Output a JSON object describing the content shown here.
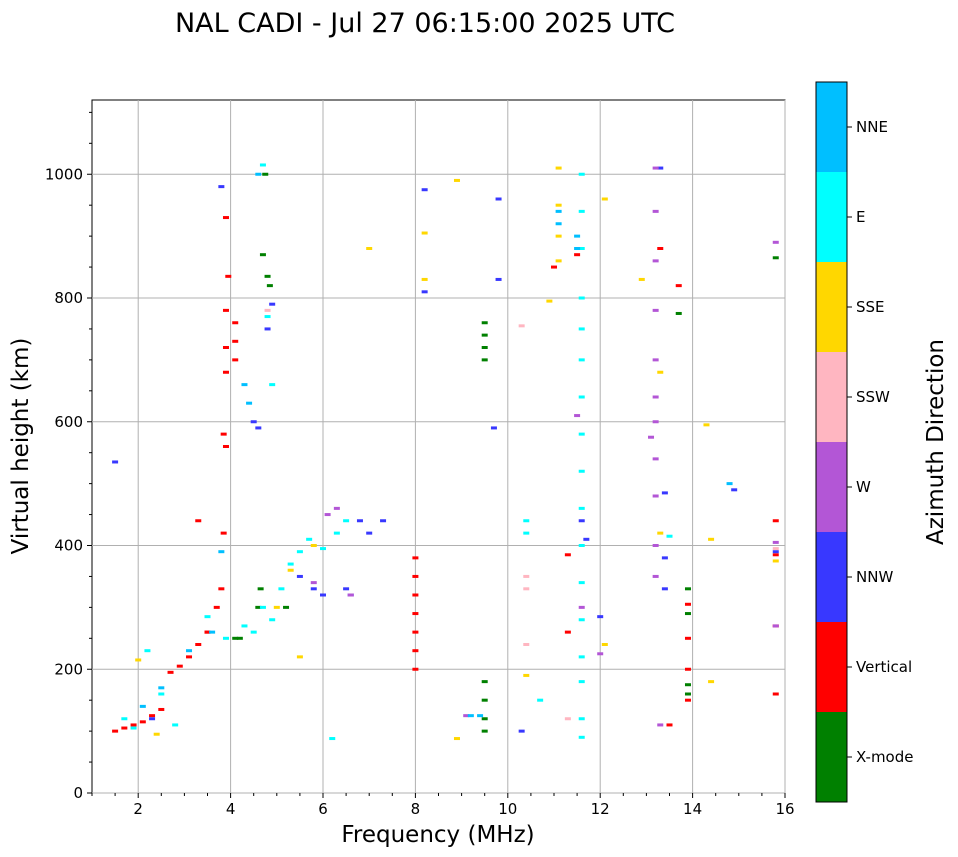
{
  "chart_data": {
    "type": "scatter",
    "title": "NAL CADI - Jul 27 06:15:00 2025 UTC",
    "xlabel": "Frequency (MHz)",
    "ylabel": "Virtual height (km)",
    "xlim": [
      1,
      16
    ],
    "ylim": [
      0,
      1120
    ],
    "x_ticks": [
      2,
      4,
      6,
      8,
      10,
      12,
      14,
      16
    ],
    "y_ticks": [
      0,
      200,
      400,
      600,
      800,
      1000
    ],
    "grid": true,
    "colorbar": {
      "label": "Azimuth Direction",
      "categories": [
        {
          "name": "X-mode",
          "color": "#008000"
        },
        {
          "name": "Vertical",
          "color": "#ff0000"
        },
        {
          "name": "NNW",
          "color": "#3838ff"
        },
        {
          "name": "W",
          "color": "#b356d6"
        },
        {
          "name": "SSW",
          "color": "#ffb6c1"
        },
        {
          "name": "SSE",
          "color": "#ffd700"
        },
        {
          "name": "E",
          "color": "#00ffff"
        },
        {
          "name": "NNE",
          "color": "#00bfff"
        }
      ]
    },
    "series": [
      {
        "name": "X-mode",
        "points": [
          [
            4.1,
            250
          ],
          [
            4.2,
            250
          ],
          [
            4.6,
            300
          ],
          [
            4.65,
            330
          ],
          [
            4.7,
            870
          ],
          [
            4.8,
            835
          ],
          [
            4.85,
            820
          ],
          [
            4.75,
            1000
          ],
          [
            9.5,
            700
          ],
          [
            9.5,
            720
          ],
          [
            9.5,
            740
          ],
          [
            9.5,
            760
          ],
          [
            9.5,
            120
          ],
          [
            9.5,
            100
          ],
          [
            9.5,
            150
          ],
          [
            9.5,
            180
          ],
          [
            13.7,
            775
          ],
          [
            13.9,
            330
          ],
          [
            13.9,
            290
          ],
          [
            13.9,
            175
          ],
          [
            13.9,
            160
          ],
          [
            15.8,
            865
          ],
          [
            5.2,
            300
          ]
        ]
      },
      {
        "name": "Vertical",
        "points": [
          [
            1.5,
            100
          ],
          [
            1.7,
            105
          ],
          [
            1.9,
            110
          ],
          [
            2.1,
            115
          ],
          [
            2.3,
            125
          ],
          [
            2.5,
            135
          ],
          [
            2.7,
            195
          ],
          [
            2.9,
            205
          ],
          [
            3.1,
            220
          ],
          [
            3.3,
            240
          ],
          [
            3.5,
            260
          ],
          [
            3.7,
            300
          ],
          [
            3.8,
            330
          ],
          [
            3.85,
            420
          ],
          [
            3.9,
            560
          ],
          [
            3.85,
            580
          ],
          [
            3.9,
            680
          ],
          [
            3.9,
            720
          ],
          [
            4.1,
            700
          ],
          [
            4.1,
            730
          ],
          [
            4.1,
            760
          ],
          [
            3.9,
            780
          ],
          [
            3.95,
            835
          ],
          [
            3.9,
            930
          ],
          [
            3.3,
            440
          ],
          [
            3.5,
            260
          ],
          [
            8.0,
            200
          ],
          [
            8.0,
            230
          ],
          [
            8.0,
            260
          ],
          [
            8.0,
            290
          ],
          [
            8.0,
            320
          ],
          [
            8.0,
            350
          ],
          [
            8.0,
            380
          ],
          [
            11.0,
            850
          ],
          [
            11.5,
            870
          ],
          [
            11.3,
            385
          ],
          [
            11.3,
            260
          ],
          [
            13.5,
            110
          ],
          [
            13.7,
            820
          ],
          [
            13.9,
            305
          ],
          [
            13.9,
            250
          ],
          [
            13.9,
            200
          ],
          [
            13.9,
            150
          ],
          [
            13.3,
            880
          ],
          [
            15.8,
            440
          ],
          [
            15.8,
            385
          ],
          [
            15.8,
            160
          ],
          [
            15.8,
            270
          ]
        ]
      },
      {
        "name": "NNW",
        "points": [
          [
            1.5,
            535
          ],
          [
            2.3,
            120
          ],
          [
            3.8,
            980
          ],
          [
            4.5,
            600
          ],
          [
            4.6,
            590
          ],
          [
            4.8,
            750
          ],
          [
            4.9,
            790
          ],
          [
            5.5,
            350
          ],
          [
            5.8,
            330
          ],
          [
            6.0,
            320
          ],
          [
            6.5,
            330
          ],
          [
            6.6,
            320
          ],
          [
            6.8,
            440
          ],
          [
            7.0,
            420
          ],
          [
            7.3,
            440
          ],
          [
            8.2,
            975
          ],
          [
            8.2,
            810
          ],
          [
            9.7,
            590
          ],
          [
            9.8,
            830
          ],
          [
            9.8,
            960
          ],
          [
            10.3,
            100
          ],
          [
            11.6,
            440
          ],
          [
            11.7,
            410
          ],
          [
            12.0,
            285
          ],
          [
            13.3,
            1010
          ],
          [
            13.4,
            485
          ],
          [
            13.4,
            330
          ],
          [
            13.4,
            380
          ],
          [
            14.9,
            490
          ],
          [
            15.8,
            390
          ]
        ]
      },
      {
        "name": "W",
        "points": [
          [
            5.8,
            340
          ],
          [
            6.1,
            450
          ],
          [
            6.3,
            460
          ],
          [
            6.6,
            320
          ],
          [
            9.1,
            125
          ],
          [
            11.5,
            610
          ],
          [
            11.6,
            300
          ],
          [
            12.0,
            225
          ],
          [
            13.2,
            1010
          ],
          [
            13.2,
            940
          ],
          [
            13.2,
            860
          ],
          [
            13.2,
            780
          ],
          [
            13.2,
            700
          ],
          [
            13.2,
            640
          ],
          [
            13.2,
            600
          ],
          [
            13.2,
            540
          ],
          [
            13.2,
            480
          ],
          [
            13.2,
            400
          ],
          [
            13.2,
            350
          ],
          [
            13.1,
            575
          ],
          [
            13.3,
            110
          ],
          [
            15.8,
            890
          ],
          [
            15.8,
            405
          ],
          [
            15.8,
            270
          ]
        ]
      },
      {
        "name": "SSW",
        "points": [
          [
            10.3,
            755
          ],
          [
            10.4,
            350
          ],
          [
            10.4,
            330
          ],
          [
            10.4,
            240
          ],
          [
            11.3,
            120
          ],
          [
            15.8,
            395
          ],
          [
            4.8,
            780
          ]
        ]
      },
      {
        "name": "SSE",
        "points": [
          [
            2.0,
            215
          ],
          [
            2.4,
            95
          ],
          [
            5.0,
            300
          ],
          [
            5.3,
            360
          ],
          [
            5.5,
            220
          ],
          [
            5.8,
            400
          ],
          [
            7.0,
            880
          ],
          [
            8.2,
            905
          ],
          [
            8.2,
            830
          ],
          [
            8.9,
            990
          ],
          [
            8.9,
            88
          ],
          [
            10.4,
            190
          ],
          [
            10.9,
            795
          ],
          [
            11.1,
            1010
          ],
          [
            11.1,
            950
          ],
          [
            11.1,
            900
          ],
          [
            11.1,
            860
          ],
          [
            12.1,
            960
          ],
          [
            12.1,
            240
          ],
          [
            12.9,
            830
          ],
          [
            13.3,
            680
          ],
          [
            13.3,
            420
          ],
          [
            14.3,
            595
          ],
          [
            14.4,
            410
          ],
          [
            14.4,
            180
          ],
          [
            15.8,
            375
          ]
        ]
      },
      {
        "name": "E",
        "points": [
          [
            1.7,
            120
          ],
          [
            1.9,
            105
          ],
          [
            2.2,
            230
          ],
          [
            2.5,
            160
          ],
          [
            2.8,
            110
          ],
          [
            3.5,
            285
          ],
          [
            3.9,
            250
          ],
          [
            4.3,
            270
          ],
          [
            4.5,
            260
          ],
          [
            4.7,
            300
          ],
          [
            4.9,
            280
          ],
          [
            5.1,
            330
          ],
          [
            5.3,
            370
          ],
          [
            5.5,
            390
          ],
          [
            5.7,
            410
          ],
          [
            6.0,
            395
          ],
          [
            6.3,
            420
          ],
          [
            6.5,
            440
          ],
          [
            4.7,
            1015
          ],
          [
            4.8,
            770
          ],
          [
            4.9,
            660
          ],
          [
            10.4,
            440
          ],
          [
            10.4,
            420
          ],
          [
            11.6,
            1000
          ],
          [
            11.6,
            940
          ],
          [
            11.6,
            880
          ],
          [
            11.6,
            800
          ],
          [
            11.6,
            750
          ],
          [
            11.6,
            700
          ],
          [
            11.6,
            640
          ],
          [
            11.6,
            580
          ],
          [
            11.6,
            520
          ],
          [
            11.6,
            460
          ],
          [
            11.6,
            400
          ],
          [
            11.6,
            340
          ],
          [
            11.6,
            280
          ],
          [
            11.6,
            220
          ],
          [
            11.6,
            180
          ],
          [
            11.6,
            120
          ],
          [
            11.6,
            90
          ],
          [
            13.5,
            415
          ],
          [
            6.2,
            88
          ],
          [
            10.7,
            150
          ]
        ]
      },
      {
        "name": "NNE",
        "points": [
          [
            2.1,
            140
          ],
          [
            2.5,
            170
          ],
          [
            3.1,
            230
          ],
          [
            3.6,
            260
          ],
          [
            3.8,
            390
          ],
          [
            4.3,
            660
          ],
          [
            4.4,
            630
          ],
          [
            4.6,
            1000
          ],
          [
            9.2,
            125
          ],
          [
            9.4,
            125
          ],
          [
            11.1,
            920
          ],
          [
            11.1,
            940
          ],
          [
            11.5,
            900
          ],
          [
            11.5,
            880
          ],
          [
            14.8,
            500
          ]
        ]
      }
    ]
  }
}
